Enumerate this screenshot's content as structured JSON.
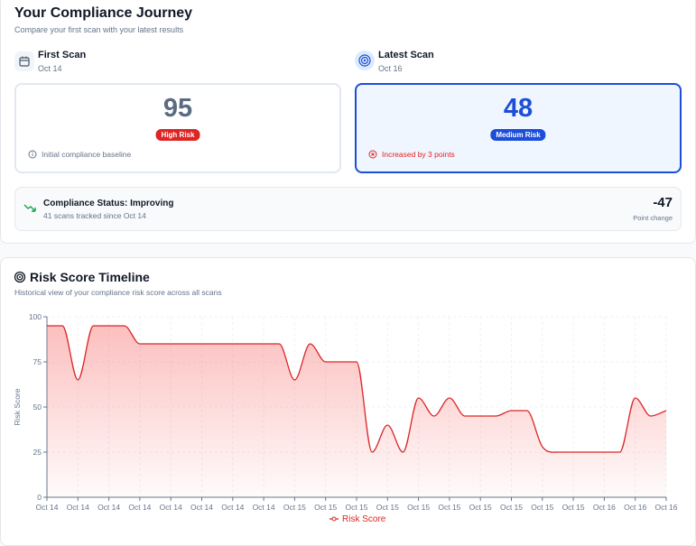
{
  "header": {
    "title": "Your Compliance Journey",
    "subtitle": "Compare your first scan with your latest results"
  },
  "first_scan": {
    "label": "First Scan",
    "date": "Oct 14",
    "score": 95,
    "badge": "High Risk",
    "note": "Initial compliance baseline"
  },
  "latest_scan": {
    "label": "Latest Scan",
    "date": "Oct 16",
    "score": 48,
    "badge": "Medium Risk",
    "note": "Increased by 3 points"
  },
  "status": {
    "title": "Compliance Status: Improving",
    "detail": "41 scans tracked since Oct 14",
    "change": -47,
    "change_label": "Point change"
  },
  "chart_data": {
    "type": "line",
    "title": "Risk Score Timeline",
    "subtitle": "Historical view of your compliance risk score across all scans",
    "y_label": "Risk Score",
    "categories": [
      "Oct 14",
      null,
      "Oct 14",
      null,
      "Oct 14",
      null,
      "Oct 14",
      null,
      "Oct 14",
      null,
      "Oct 14",
      null,
      "Oct 14",
      null,
      "Oct 14",
      null,
      "Oct 15",
      null,
      "Oct 15",
      null,
      "Oct 15",
      null,
      "Oct 15",
      null,
      "Oct 15",
      null,
      "Oct 15",
      null,
      "Oct 15",
      null,
      "Oct 15",
      null,
      "Oct 15",
      null,
      "Oct 15",
      null,
      "Oct 16",
      null,
      "Oct 16",
      null,
      "Oct 16"
    ],
    "series": [
      {
        "name": "Risk Score",
        "color": "#dc2626",
        "values": [
          95,
          95,
          65,
          95,
          95,
          95,
          85,
          85,
          85,
          85,
          85,
          85,
          85,
          85,
          85,
          85,
          65,
          85,
          75,
          75,
          75,
          25,
          40,
          25,
          55,
          45,
          55,
          45,
          45,
          45,
          48,
          48,
          28,
          25,
          25,
          25,
          25,
          25,
          55,
          45,
          48
        ]
      }
    ],
    "ylim": [
      0,
      100
    ],
    "yticks": [
      0,
      25,
      50,
      75,
      100
    ],
    "grid": true,
    "legend": "bottom"
  }
}
